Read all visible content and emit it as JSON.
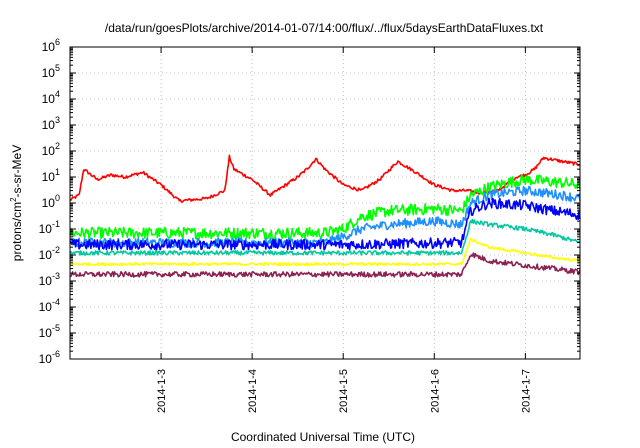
{
  "chart_data": {
    "type": "line",
    "title": "/data/run/goesPlots/archive/2014-01-07/14:00/flux/../flux/5daysEarthDataFluxes.txt",
    "xlabel": "Coordinated Universal Time (UTC)",
    "ylabel": "protons/cm2-s-sr-MeV",
    "yscale": "log",
    "ylim_exp": [
      -6,
      6
    ],
    "ytick_base": "10",
    "yticks_exp": [
      "-6",
      "-5",
      "-4",
      "-3",
      "-2",
      "-1",
      "0",
      "1",
      "2",
      "3",
      "4",
      "5",
      "6"
    ],
    "xlim_day": [
      2.0,
      7.6
    ],
    "xticks": [
      {
        "day": 3,
        "label": "2014-1-3"
      },
      {
        "day": 4,
        "label": "2014-1-4"
      },
      {
        "day": 5,
        "label": "2014-1-5"
      },
      {
        "day": 6,
        "label": "2014-1-6"
      },
      {
        "day": 7,
        "label": "2014-1-7"
      }
    ],
    "grid": true,
    "series": [
      {
        "color": "#ff0000",
        "noise": 0.06,
        "x": [
          2.0,
          2.1,
          2.15,
          2.3,
          2.45,
          2.6,
          2.8,
          3.0,
          3.2,
          3.5,
          3.7,
          3.75,
          3.8,
          4.0,
          4.2,
          4.5,
          4.6,
          4.7,
          4.8,
          5.0,
          5.2,
          5.4,
          5.6,
          5.8,
          6.0,
          6.2,
          6.35,
          6.5,
          6.7,
          6.9,
          7.0,
          7.1,
          7.2,
          7.4,
          7.6
        ],
        "y": [
          1.3,
          2.0,
          20,
          8,
          12,
          10,
          15,
          5,
          1.2,
          1.5,
          3,
          60,
          20,
          8,
          2,
          10,
          20,
          50,
          20,
          5,
          3,
          8,
          40,
          15,
          5,
          3,
          3,
          2.5,
          3,
          10,
          12,
          20,
          55,
          40,
          30
        ]
      },
      {
        "color": "#00ff00",
        "noise": 0.22,
        "x": [
          2.0,
          4.8,
          5.0,
          5.2,
          5.5,
          6.0,
          6.3,
          6.4,
          6.6,
          6.8,
          7.0,
          7.2,
          7.4,
          7.6
        ],
        "y": [
          0.07,
          0.07,
          0.1,
          0.3,
          0.5,
          0.6,
          0.5,
          2,
          4,
          6,
          8,
          7,
          6,
          5
        ]
      },
      {
        "color": "#1e90ff",
        "noise": 0.18,
        "x": [
          2.0,
          4.8,
          5.0,
          5.2,
          5.5,
          6.0,
          6.3,
          6.4,
          6.6,
          6.8,
          7.0,
          7.2,
          7.4,
          7.6
        ],
        "y": [
          0.03,
          0.03,
          0.05,
          0.1,
          0.15,
          0.2,
          0.15,
          1,
          2,
          2.5,
          3,
          2.5,
          2,
          1.5
        ]
      },
      {
        "color": "#0000ff",
        "noise": 0.2,
        "x": [
          2.0,
          5.0,
          6.3,
          6.4,
          6.6,
          7.0,
          7.3,
          7.6
        ],
        "y": [
          0.025,
          0.025,
          0.03,
          0.5,
          1.0,
          0.8,
          0.5,
          0.35
        ]
      },
      {
        "color": "#00c8a0",
        "noise": 0.08,
        "x": [
          2.0,
          6.3,
          6.4,
          6.6,
          7.0,
          7.3,
          7.6
        ],
        "y": [
          0.012,
          0.012,
          0.2,
          0.15,
          0.1,
          0.06,
          0.03
        ]
      },
      {
        "color": "#ffff00",
        "noise": 0.05,
        "x": [
          2.0,
          6.3,
          6.4,
          6.6,
          7.0,
          7.3,
          7.6
        ],
        "y": [
          0.0045,
          0.0045,
          0.04,
          0.02,
          0.012,
          0.008,
          0.006
        ]
      },
      {
        "color": "#8b2252",
        "noise": 0.1,
        "x": [
          2.0,
          6.3,
          6.4,
          6.6,
          7.0,
          7.3,
          7.6
        ],
        "y": [
          0.0018,
          0.0018,
          0.011,
          0.006,
          0.004,
          0.003,
          0.0022
        ]
      }
    ]
  }
}
